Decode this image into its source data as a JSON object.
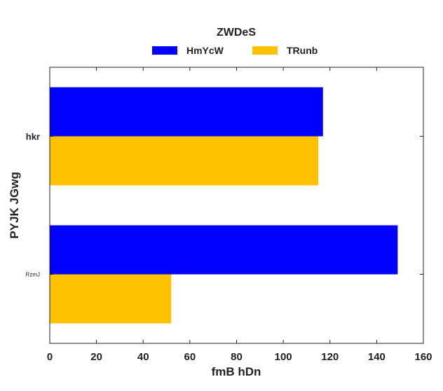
{
  "chart_data": {
    "type": "bar",
    "orientation": "horizontal",
    "legend_title": "ZWDeS",
    "legend_position": "top-center",
    "categories": [
      "hkr",
      "RzmJ"
    ],
    "series": [
      {
        "name": "HmYcW",
        "color": "#0000ff",
        "values": [
          117,
          149
        ]
      },
      {
        "name": "TRunb",
        "color": "#ffc200",
        "values": [
          115,
          52
        ]
      }
    ],
    "xlabel": "fmB hDn",
    "ylabel": "PYJK JGwg",
    "xlim": [
      0,
      160
    ],
    "xticks": [
      0,
      20,
      40,
      60,
      80,
      100,
      120,
      140,
      160
    ],
    "grid": false
  }
}
